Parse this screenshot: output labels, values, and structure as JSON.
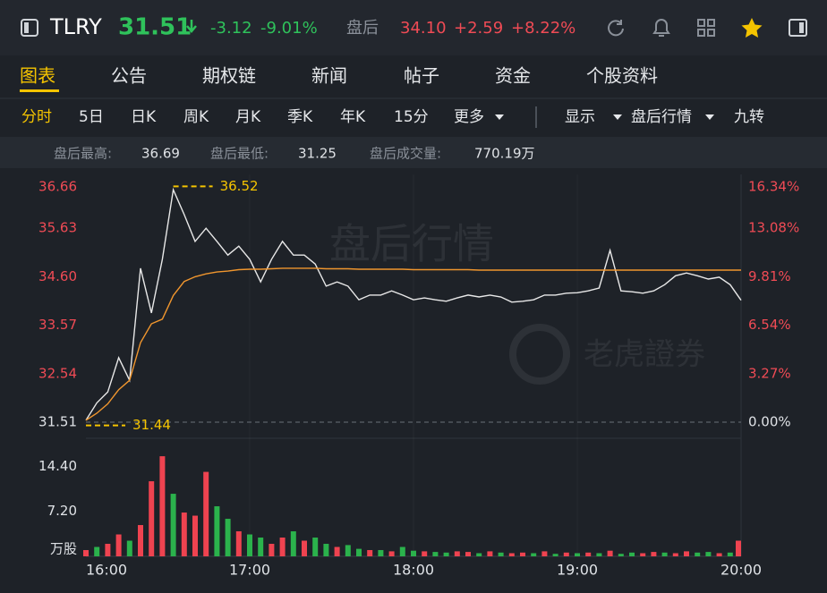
{
  "header": {
    "symbol": "TLRY",
    "price": "31.51",
    "change": "-3.12",
    "change_pct": "-9.01%",
    "after_hours_label": "盘后",
    "after_price": "34.10",
    "after_change": "+2.59",
    "after_change_pct": "+8.22%"
  },
  "tabs": [
    "图表",
    "公告",
    "期权链",
    "新闻",
    "帖子",
    "资金",
    "个股资料"
  ],
  "periods": [
    "分时",
    "5日",
    "日K",
    "周K",
    "月K",
    "季K",
    "年K",
    "15分",
    "更多"
  ],
  "options": [
    "显示",
    "盘后行情",
    "九转"
  ],
  "stats": [
    {
      "label": "盘后最高:",
      "value": "36.69"
    },
    {
      "label": "盘后最低:",
      "value": "31.25"
    },
    {
      "label": "盘后成交量:",
      "value": "770.19万"
    }
  ],
  "watermarks": [
    "盘后行情",
    "老虎證券"
  ],
  "chart_data": {
    "type": "line",
    "x": [
      "16:00",
      "16:04",
      "16:08",
      "16:12",
      "16:16",
      "16:20",
      "16:24",
      "16:28",
      "16:32",
      "16:36",
      "16:40",
      "16:44",
      "16:48",
      "16:52",
      "16:56",
      "17:00",
      "17:04",
      "17:08",
      "17:12",
      "17:16",
      "17:20",
      "17:24",
      "17:28",
      "17:32",
      "17:36",
      "17:40",
      "17:44",
      "17:48",
      "17:52",
      "17:56",
      "18:00",
      "18:04",
      "18:08",
      "18:12",
      "18:16",
      "18:20",
      "18:24",
      "18:28",
      "18:32",
      "18:36",
      "18:40",
      "18:44",
      "18:48",
      "18:52",
      "18:56",
      "19:00",
      "19:04",
      "19:08",
      "19:12",
      "19:16",
      "19:20",
      "19:24",
      "19:28",
      "19:32",
      "19:36",
      "19:40",
      "19:44",
      "19:48",
      "19:52",
      "19:56",
      "20:00"
    ],
    "xlim": [
      "16:00",
      "20:00"
    ],
    "xticks": [
      "16:00",
      "17:00",
      "18:00",
      "19:00",
      "20:00"
    ],
    "series": [
      {
        "color": "#e8e8e8",
        "values": [
          31.55,
          31.92,
          32.15,
          32.88,
          32.4,
          34.78,
          33.83,
          34.97,
          36.45,
          35.92,
          35.35,
          35.63,
          35.35,
          35.06,
          35.25,
          34.97,
          34.49,
          34.97,
          35.35,
          35.06,
          35.06,
          34.87,
          34.4,
          34.49,
          34.4,
          34.11,
          34.21,
          34.21,
          34.3,
          34.21,
          34.11,
          34.15,
          34.11,
          34.08,
          34.15,
          34.21,
          34.17,
          34.21,
          34.17,
          34.06,
          34.08,
          34.11,
          34.21,
          34.21,
          34.25,
          34.26,
          34.3,
          34.36,
          35.16,
          34.3,
          34.28,
          34.25,
          34.3,
          34.43,
          34.62,
          34.68,
          34.62,
          34.55,
          34.59,
          34.43,
          34.1
        ]
      },
      {
        "color": "#f0962e",
        "values": [
          31.55,
          31.7,
          31.9,
          32.2,
          32.4,
          33.2,
          33.6,
          33.7,
          34.2,
          34.5,
          34.6,
          34.66,
          34.7,
          34.72,
          34.75,
          34.76,
          34.76,
          34.77,
          34.78,
          34.78,
          34.78,
          34.78,
          34.77,
          34.77,
          34.77,
          34.76,
          34.76,
          34.76,
          34.76,
          34.76,
          34.75,
          34.75,
          34.75,
          34.75,
          34.75,
          34.75,
          34.74,
          34.74,
          34.74,
          34.74,
          34.74,
          34.74,
          34.74,
          34.74,
          34.74,
          34.74,
          34.74,
          34.74,
          34.74,
          34.74,
          34.74,
          34.74,
          34.74,
          34.74,
          34.74,
          34.74,
          34.74,
          34.74,
          34.74,
          34.74,
          34.74
        ]
      }
    ],
    "ylim": [
      31.51,
      36.66
    ],
    "yticks": [
      36.66,
      35.63,
      {
        "value": 34.6,
        "label": "34.60"
      },
      33.57,
      32.54,
      31.51
    ],
    "y2lim": [
      0,
      16.34
    ],
    "y2ticks": [
      {
        "value": 16.34,
        "label": "16.34%"
      },
      {
        "value": 13.08,
        "label": "13.08%"
      },
      {
        "value": 9.81,
        "label": "9.81%"
      },
      {
        "value": 6.54,
        "label": "6.54%"
      },
      {
        "value": 3.27,
        "label": "3.27%"
      },
      {
        "value": 0,
        "label": "0.00%"
      }
    ],
    "high_marker": 36.52,
    "low_marker": 31.44,
    "volume": {
      "type": "bar",
      "ylim": [
        0,
        17.3
      ],
      "yticks": [
        {
          "value": 14.4,
          "label": "14.40"
        },
        {
          "value": 7.2,
          "label": "7.20"
        },
        {
          "value": 0,
          "label": "万股"
        }
      ],
      "values": [
        1.0,
        1.5,
        2.0,
        3.5,
        2.5,
        5.0,
        12.0,
        16.0,
        10.0,
        7.0,
        6.5,
        13.5,
        8.0,
        6.0,
        4.0,
        3.5,
        3.0,
        2.0,
        3.0,
        4.0,
        2.5,
        3.0,
        2.0,
        1.5,
        1.8,
        1.2,
        1.0,
        1.0,
        0.8,
        1.5,
        0.9,
        0.8,
        0.7,
        0.6,
        0.8,
        0.7,
        0.5,
        0.8,
        0.6,
        0.5,
        0.6,
        0.5,
        0.8,
        0.4,
        0.6,
        0.5,
        0.6,
        0.5,
        0.9,
        0.4,
        0.6,
        0.5,
        0.7,
        0.6,
        0.5,
        0.8,
        0.6,
        0.7,
        0.5,
        0.6,
        2.5
      ],
      "colors": [
        "#ef4350",
        "#2bb24c",
        "#ef4350",
        "#ef4350",
        "#2bb24c",
        "#ef4350",
        "#ef4350",
        "#ef4350",
        "#2bb24c",
        "#ef4350",
        "#ef4350",
        "#ef4350",
        "#2bb24c",
        "#2bb24c",
        "#ef4350",
        "#2bb24c",
        "#2bb24c",
        "#ef4350",
        "#ef4350",
        "#2bb24c",
        "#ef4350",
        "#2bb24c",
        "#2bb24c",
        "#ef4350",
        "#2bb24c",
        "#2bb24c",
        "#ef4350",
        "#2bb24c",
        "#ef4350",
        "#2bb24c",
        "#2bb24c",
        "#ef4350",
        "#2bb24c",
        "#2bb24c",
        "#ef4350",
        "#ef4350",
        "#2bb24c",
        "#ef4350",
        "#2bb24c",
        "#ef4350",
        "#ef4350",
        "#2bb24c",
        "#ef4350",
        "#2bb24c",
        "#ef4350",
        "#2bb24c",
        "#ef4350",
        "#2bb24c",
        "#ef4350",
        "#2bb24c",
        "#2bb24c",
        "#ef4350",
        "#ef4350",
        "#2bb24c",
        "#ef4350",
        "#ef4350",
        "#2bb24c",
        "#2bb24c",
        "#ef4350",
        "#2bb24c",
        "#ef4350"
      ]
    }
  }
}
